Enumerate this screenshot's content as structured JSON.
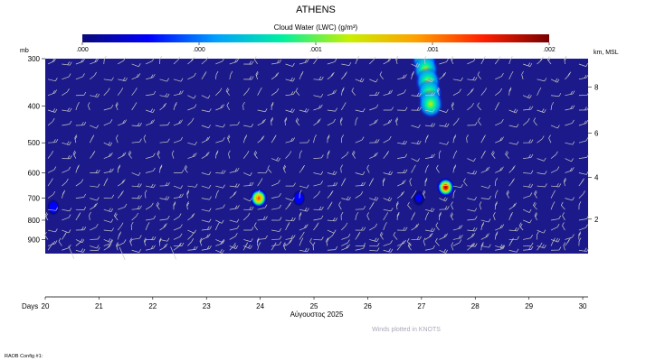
{
  "chart_data": {
    "type": "heatmap",
    "title": "ATHENS",
    "colorbar": {
      "label": "Cloud Water (LWC) (g/m³)",
      "tick_labels": [
        ".000",
        ".000",
        ".001",
        ".001",
        ".002"
      ],
      "colors": [
        "#0a0a78",
        "#0000ff",
        "#00a0ff",
        "#00f0a0",
        "#c8f000",
        "#ffa000",
        "#ff2000",
        "#780000"
      ]
    },
    "background_color": "#1c1a8a",
    "left_axis": {
      "label": "mb",
      "ticks": [
        300,
        400,
        500,
        600,
        700,
        800,
        900
      ],
      "range": [
        980,
        300
      ],
      "scale": "log"
    },
    "right_axis": {
      "label": "km, MSL",
      "ticks": [
        2,
        4,
        6,
        8
      ]
    },
    "x_axis": {
      "label": "Days",
      "ticks": [
        20,
        21,
        22,
        23,
        24,
        25,
        26,
        27,
        28,
        29,
        30
      ],
      "range": [
        20,
        30.1
      ],
      "date_label": "Αύγουστος 2025"
    },
    "cloud_blobs": [
      {
        "day": 23.97,
        "p_mb": 700,
        "peak": 0.0018
      },
      {
        "day": 24.72,
        "p_mb": 700,
        "peak": 0.0004
      },
      {
        "day": 27.45,
        "p_mb": 655,
        "peak": 0.002
      },
      {
        "day": 26.95,
        "p_mb": 700,
        "peak": 0.0003
      },
      {
        "day": 27.1,
        "p_mb": 305,
        "peak": 0.0016
      },
      {
        "day": 27.15,
        "p_mb": 360,
        "peak": 0.0015
      },
      {
        "day": 20.15,
        "p_mb": 740,
        "peak": 0.0004
      }
    ],
    "wind_barb_color": "#c8c8c8",
    "wind_note": "Winds plotted in KNOTS"
  },
  "footer": {
    "config": "RAOB Config #1:"
  }
}
